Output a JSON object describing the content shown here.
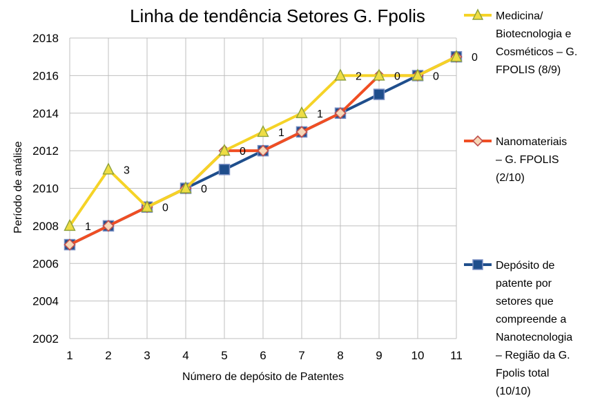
{
  "chart_data": {
    "type": "line",
    "title": "Linha de tendência Setores G. Fpolis",
    "xlabel": "Número de depósito de Patentes",
    "ylabel": "Período de análise",
    "x": [
      1,
      2,
      3,
      4,
      5,
      6,
      7,
      8,
      9,
      10,
      11
    ],
    "xlim": [
      1,
      11
    ],
    "ylim": [
      2002,
      2018
    ],
    "yticks": [
      2002,
      2004,
      2006,
      2008,
      2010,
      2012,
      2014,
      2016,
      2018
    ],
    "grid": true,
    "legend_position": "right",
    "series": [
      {
        "name": "Depósito de patente por setores que compreende a Nanotecnologia – Região da G. Fpolis total (10/10)",
        "legend_lines": [
          "Depósito de",
          "patente por",
          "setores que",
          "compreende a",
          "Nanotecnologia",
          "– Região da G.",
          "Fpolis total",
          "(10/10)"
        ],
        "color": "#1f4e8c",
        "marker": "square",
        "values": [
          2007,
          2008,
          2009,
          2010,
          2011,
          2012,
          2013,
          2014,
          2015,
          2016,
          2017
        ]
      },
      {
        "name": "Nanomateriais – G. FPOLIS (2/10)",
        "legend_lines": [
          "Nanomateriais",
          "– G. FPOLIS",
          "(2/10)"
        ],
        "color": "#f04e23",
        "marker": "diamond",
        "values": [
          2007,
          2008,
          2009,
          2010,
          2012,
          2012,
          2013,
          2014,
          2016,
          2016,
          2017
        ]
      },
      {
        "name": "Medicina/ Biotecnologia e Cosméticos – G. FPOLIS (8/9)",
        "legend_lines": [
          "Medicina/",
          "Biotecnologia e",
          "Cosméticos – G.",
          "FPOLIS (8/9)"
        ],
        "color": "#f5d327",
        "marker": "triangle",
        "values": [
          2008,
          2011,
          2009,
          2010,
          2012,
          2013,
          2014,
          2016,
          2016,
          2016,
          2017
        ],
        "data_labels": [
          "1",
          "3",
          "0",
          "0",
          "0",
          "1",
          "1",
          "2",
          "0",
          "0",
          "0"
        ]
      }
    ]
  }
}
